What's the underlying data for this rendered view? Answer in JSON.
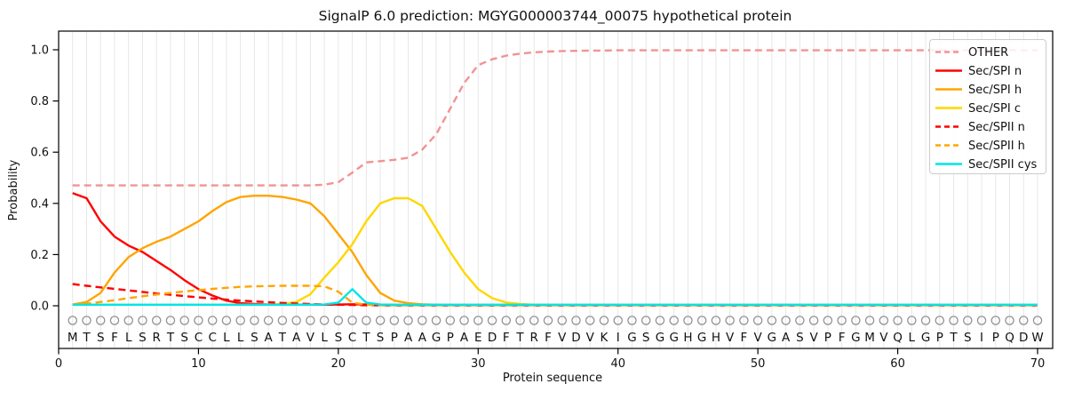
{
  "chart_data": {
    "type": "line",
    "title": "SignalP 6.0 prediction: MGYG000003744_00075 hypothetical protein",
    "xlabel": "Protein sequence",
    "ylabel": "Probability",
    "xlim": [
      0,
      70
    ],
    "ylim": [
      0.0,
      1.0
    ],
    "xticks": [
      0,
      10,
      20,
      30,
      40,
      50,
      60,
      70
    ],
    "yticks": [
      0.0,
      0.2,
      0.4,
      0.6,
      0.8,
      1.0
    ],
    "grid": "vertical lines at every residue position, light gray, no horizontal grid",
    "legend_position": "upper right",
    "marker_row": "gray open circle above every residue letter",
    "sequence": "MTSFLSRTSCCLLSATAVLSCTSPAAGPAEDFTRFVDVKIGSGGHGHVFVGASVPFGMVQLGPTSIPQDW",
    "x": [
      1,
      2,
      3,
      4,
      5,
      6,
      7,
      8,
      9,
      10,
      11,
      12,
      13,
      14,
      15,
      16,
      17,
      18,
      19,
      20,
      21,
      22,
      23,
      24,
      25,
      26,
      27,
      28,
      29,
      30,
      31,
      32,
      33,
      34,
      35,
      36,
      37,
      38,
      39,
      40,
      41,
      42,
      43,
      44,
      45,
      46,
      47,
      48,
      49,
      50,
      51,
      52,
      53,
      54,
      55,
      56,
      57,
      58,
      59,
      60,
      61,
      62,
      63,
      64,
      65,
      66,
      67,
      68,
      69,
      70
    ],
    "series": [
      {
        "name": "OTHER",
        "color": "#f08080",
        "style": "dashed",
        "values": [
          0.47,
          0.47,
          0.47,
          0.47,
          0.47,
          0.47,
          0.47,
          0.47,
          0.47,
          0.47,
          0.47,
          0.47,
          0.47,
          0.47,
          0.47,
          0.47,
          0.47,
          0.47,
          0.473,
          0.483,
          0.52,
          0.56,
          0.565,
          0.57,
          0.578,
          0.61,
          0.67,
          0.77,
          0.87,
          0.94,
          0.963,
          0.977,
          0.985,
          0.99,
          0.993,
          0.995,
          0.996,
          0.997,
          0.997,
          0.998,
          0.998,
          0.998,
          0.998,
          0.998,
          0.998,
          0.998,
          0.998,
          0.998,
          0.998,
          0.998,
          0.998,
          0.998,
          0.998,
          0.998,
          0.998,
          0.998,
          0.998,
          0.998,
          0.998,
          0.998,
          0.998,
          0.998,
          0.998,
          0.998,
          0.998,
          0.998,
          0.998,
          0.998,
          0.998,
          0.998
        ]
      },
      {
        "name": "Sec/SPI n",
        "color": "#ff0000",
        "style": "solid",
        "values": [
          0.44,
          0.42,
          0.33,
          0.27,
          0.235,
          0.21,
          0.175,
          0.14,
          0.1,
          0.065,
          0.04,
          0.02,
          0.01,
          0.007,
          0.005,
          0.005,
          0.004,
          0.004,
          0.004,
          0.005,
          0.006,
          0.005,
          0.004,
          0.003,
          0.003,
          0.003,
          0.003,
          0.003,
          0.003,
          0.003,
          0.003,
          0.003,
          0.003,
          0.003,
          0.003,
          0.003,
          0.003,
          0.003,
          0.003,
          0.003,
          0.003,
          0.003,
          0.003,
          0.003,
          0.003,
          0.003,
          0.003,
          0.003,
          0.003,
          0.003,
          0.003,
          0.003,
          0.003,
          0.003,
          0.003,
          0.003,
          0.003,
          0.003,
          0.003,
          0.003,
          0.003,
          0.003,
          0.003,
          0.003,
          0.003,
          0.003,
          0.003,
          0.003,
          0.003,
          0.003
        ]
      },
      {
        "name": "Sec/SPI h",
        "color": "#ffa500",
        "style": "solid",
        "values": [
          0.005,
          0.015,
          0.05,
          0.13,
          0.19,
          0.225,
          0.25,
          0.27,
          0.3,
          0.33,
          0.37,
          0.405,
          0.425,
          0.43,
          0.43,
          0.425,
          0.415,
          0.4,
          0.35,
          0.28,
          0.21,
          0.12,
          0.05,
          0.02,
          0.01,
          0.006,
          0.004,
          0.003,
          0.003,
          0.003,
          0.003,
          0.003,
          0.003,
          0.003,
          0.003,
          0.003,
          0.003,
          0.003,
          0.003,
          0.003,
          0.003,
          0.003,
          0.003,
          0.003,
          0.003,
          0.003,
          0.003,
          0.003,
          0.003,
          0.003,
          0.003,
          0.003,
          0.003,
          0.003,
          0.003,
          0.003,
          0.003,
          0.003,
          0.003,
          0.003,
          0.003,
          0.003,
          0.003,
          0.003,
          0.003,
          0.003,
          0.003,
          0.003,
          0.003,
          0.003
        ]
      },
      {
        "name": "Sec/SPI c",
        "color": "#ffd700",
        "style": "solid",
        "values": [
          0.004,
          0.004,
          0.004,
          0.004,
          0.004,
          0.004,
          0.004,
          0.004,
          0.004,
          0.004,
          0.004,
          0.004,
          0.004,
          0.004,
          0.005,
          0.008,
          0.015,
          0.045,
          0.11,
          0.17,
          0.24,
          0.33,
          0.4,
          0.42,
          0.42,
          0.39,
          0.3,
          0.21,
          0.13,
          0.065,
          0.03,
          0.013,
          0.007,
          0.004,
          0.003,
          0.003,
          0.003,
          0.003,
          0.003,
          0.003,
          0.003,
          0.003,
          0.003,
          0.003,
          0.003,
          0.003,
          0.003,
          0.003,
          0.003,
          0.003,
          0.003,
          0.003,
          0.003,
          0.003,
          0.003,
          0.003,
          0.003,
          0.003,
          0.003,
          0.003,
          0.003,
          0.003,
          0.003,
          0.003,
          0.003,
          0.003,
          0.003,
          0.003,
          0.003,
          0.003
        ]
      },
      {
        "name": "Sec/SPII n",
        "color": "#ff0000",
        "style": "dashed",
        "values": [
          0.085,
          0.078,
          0.072,
          0.066,
          0.06,
          0.054,
          0.048,
          0.043,
          0.038,
          0.033,
          0.028,
          0.024,
          0.02,
          0.017,
          0.014,
          0.011,
          0.009,
          0.007,
          0.005,
          0.004,
          0.003,
          0.002,
          0.002,
          0.002,
          0.002,
          0.002,
          0.002,
          0.002,
          0.002,
          0.002,
          0.002,
          0.002,
          0.002,
          0.002,
          0.002,
          0.002,
          0.002,
          0.002,
          0.002,
          0.002,
          0.002,
          0.002,
          0.002,
          0.002,
          0.002,
          0.002,
          0.002,
          0.002,
          0.002,
          0.002,
          0.002,
          0.002,
          0.002,
          0.002,
          0.002,
          0.002,
          0.002,
          0.002,
          0.002,
          0.002,
          0.002,
          0.002,
          0.002,
          0.002,
          0.002,
          0.002,
          0.002,
          0.002,
          0.002,
          0.002
        ]
      },
      {
        "name": "Sec/SPII h",
        "color": "#ffa500",
        "style": "dashed",
        "values": [
          0.004,
          0.008,
          0.015,
          0.022,
          0.03,
          0.037,
          0.044,
          0.05,
          0.056,
          0.061,
          0.066,
          0.07,
          0.074,
          0.076,
          0.077,
          0.078,
          0.078,
          0.078,
          0.076,
          0.055,
          0.012,
          0.004,
          0.002,
          0.002,
          0.002,
          0.002,
          0.002,
          0.002,
          0.002,
          0.002,
          0.002,
          0.002,
          0.002,
          0.002,
          0.002,
          0.002,
          0.002,
          0.002,
          0.002,
          0.002,
          0.002,
          0.002,
          0.002,
          0.002,
          0.002,
          0.002,
          0.002,
          0.002,
          0.002,
          0.002,
          0.002,
          0.002,
          0.002,
          0.002,
          0.002,
          0.002,
          0.002,
          0.002,
          0.002,
          0.002,
          0.002,
          0.002,
          0.002,
          0.002,
          0.002,
          0.002,
          0.002,
          0.002,
          0.002,
          0.002
        ]
      },
      {
        "name": "Sec/SPII cys",
        "color": "#00e5e5",
        "style": "solid",
        "values": [
          0.004,
          0.004,
          0.004,
          0.004,
          0.004,
          0.004,
          0.004,
          0.004,
          0.004,
          0.004,
          0.004,
          0.004,
          0.004,
          0.004,
          0.004,
          0.004,
          0.004,
          0.004,
          0.005,
          0.012,
          0.065,
          0.012,
          0.005,
          0.004,
          0.004,
          0.004,
          0.004,
          0.004,
          0.004,
          0.004,
          0.004,
          0.004,
          0.004,
          0.004,
          0.004,
          0.004,
          0.004,
          0.004,
          0.004,
          0.004,
          0.004,
          0.004,
          0.004,
          0.004,
          0.004,
          0.004,
          0.004,
          0.004,
          0.004,
          0.004,
          0.004,
          0.004,
          0.004,
          0.004,
          0.004,
          0.004,
          0.004,
          0.004,
          0.004,
          0.004,
          0.004,
          0.004,
          0.004,
          0.004,
          0.004,
          0.004,
          0.004,
          0.004,
          0.004,
          0.004
        ]
      }
    ]
  }
}
